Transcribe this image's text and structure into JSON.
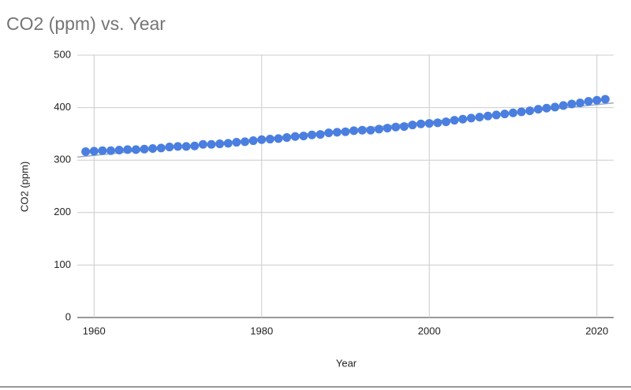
{
  "chart_data": {
    "type": "scatter",
    "title": "CO2 (ppm) vs. Year",
    "x_label": "Year",
    "y_label": "CO2 (ppm)",
    "x": [
      1959,
      1960,
      1961,
      1962,
      1963,
      1964,
      1965,
      1966,
      1967,
      1968,
      1969,
      1970,
      1971,
      1972,
      1973,
      1974,
      1975,
      1976,
      1977,
      1978,
      1979,
      1980,
      1981,
      1982,
      1983,
      1984,
      1985,
      1986,
      1987,
      1988,
      1989,
      1990,
      1991,
      1992,
      1993,
      1994,
      1995,
      1996,
      1997,
      1998,
      1999,
      2000,
      2001,
      2002,
      2003,
      2004,
      2005,
      2006,
      2007,
      2008,
      2009,
      2010,
      2011,
      2012,
      2013,
      2014,
      2015,
      2016,
      2017,
      2018,
      2019,
      2020,
      2021
    ],
    "series": [
      {
        "name": "CO2 (ppm)",
        "color": "#4a7fe0",
        "values": [
          316,
          317,
          318,
          318,
          319,
          320,
          320,
          321,
          322,
          323,
          325,
          326,
          326,
          327,
          330,
          330,
          331,
          332,
          334,
          335,
          337,
          339,
          340,
          341,
          343,
          345,
          346,
          348,
          349,
          352,
          353,
          354,
          356,
          357,
          357,
          359,
          361,
          363,
          364,
          367,
          369,
          370,
          371,
          373,
          376,
          378,
          380,
          382,
          384,
          386,
          388,
          390,
          392,
          394,
          397,
          399,
          401,
          404,
          407,
          409,
          412,
          414,
          416
        ]
      }
    ],
    "trendline": true,
    "trendline_color": "#9aa9c4",
    "xlim": [
      1958,
      2022
    ],
    "xticks": [
      1960,
      1980,
      2000,
      2020
    ],
    "ylim": [
      0,
      500
    ],
    "yticks": [
      0,
      100,
      200,
      300,
      400,
      500
    ],
    "grid": true
  }
}
